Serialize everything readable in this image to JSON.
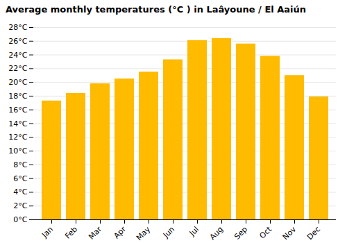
{
  "chart_data": {
    "type": "bar",
    "title": "Average monthly temperatures (°C ) in Laâyoune / El Aaiún",
    "categories": [
      "Jan",
      "Feb",
      "Mar",
      "Apr",
      "May",
      "Jun",
      "Jul",
      "Aug",
      "Sep",
      "Oct",
      "Nov",
      "Dec"
    ],
    "values": [
      17.3,
      18.4,
      19.8,
      20.5,
      21.5,
      23.3,
      26.1,
      26.4,
      25.6,
      23.8,
      21.0,
      17.9
    ],
    "color": "#FFBB00",
    "ylim": [
      0,
      28
    ],
    "yticks": [
      {
        "value": 0,
        "label": "0°C"
      },
      {
        "value": 2,
        "label": "2°C"
      },
      {
        "value": 4,
        "label": "4°C"
      },
      {
        "value": 6,
        "label": "6°C"
      },
      {
        "value": 8,
        "label": "8°C"
      },
      {
        "value": 10,
        "label": "10°C"
      },
      {
        "value": 12,
        "label": "12°C"
      },
      {
        "value": 14,
        "label": "14°C"
      },
      {
        "value": 16,
        "label": "16°C"
      },
      {
        "value": 18,
        "label": "18°C"
      },
      {
        "value": 20,
        "label": "20°C"
      },
      {
        "value": 22,
        "label": "22°C"
      },
      {
        "value": 24,
        "label": "24°C"
      },
      {
        "value": 26,
        "label": "26°C"
      },
      {
        "value": 28,
        "label": "28°C"
      }
    ],
    "grid": true
  }
}
